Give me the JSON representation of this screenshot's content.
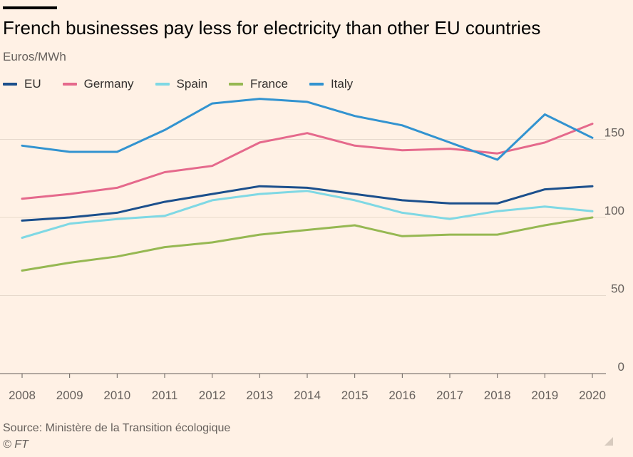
{
  "title": "French businesses pay less for electricity than other EU countries",
  "subtitle": "Euros/MWh",
  "source": "Source: Ministère de la Transition écologique",
  "credit": "© FT",
  "chart_data": {
    "type": "line",
    "title": "French businesses pay less for electricity than other EU countries",
    "ylabel": "Euros/MWh",
    "xlabel": "",
    "ylim": [
      0,
      175
    ],
    "yticks": [
      0,
      50,
      100,
      150
    ],
    "grid": true,
    "legend_position": "top-left",
    "x": [
      "2008",
      "2009",
      "2010",
      "2011",
      "2012",
      "2013",
      "2014",
      "2015",
      "2016",
      "2017",
      "2018",
      "2019",
      "2020"
    ],
    "series": [
      {
        "name": "EU",
        "color": "#1b4f8c",
        "values": [
          98,
          100,
          103,
          110,
          115,
          120,
          119,
          115,
          111,
          109,
          109,
          118,
          120
        ]
      },
      {
        "name": "Germany",
        "color": "#e5698c",
        "values": [
          112,
          115,
          119,
          129,
          133,
          148,
          154,
          146,
          143,
          144,
          141,
          148,
          160
        ]
      },
      {
        "name": "Spain",
        "color": "#7fd8e4",
        "values": [
          87,
          96,
          99,
          101,
          111,
          115,
          117,
          111,
          103,
          99,
          104,
          107,
          104
        ]
      },
      {
        "name": "France",
        "color": "#96b852",
        "values": [
          66,
          71,
          75,
          81,
          84,
          89,
          92,
          95,
          88,
          89,
          89,
          95,
          100
        ]
      },
      {
        "name": "Italy",
        "color": "#3293d0",
        "values": [
          146,
          142,
          142,
          156,
          173,
          176,
          174,
          165,
          159,
          148,
          137,
          166,
          151
        ]
      }
    ]
  }
}
